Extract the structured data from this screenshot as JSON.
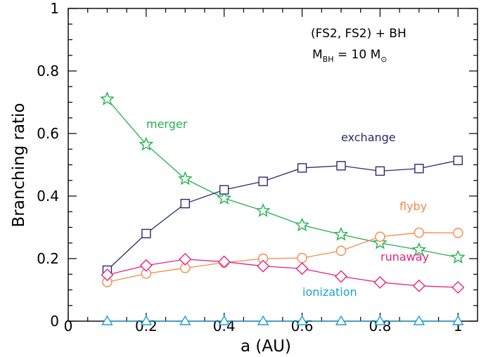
{
  "chart_data": {
    "type": "line",
    "xlabel": "a (AU)",
    "ylabel": "Branching ratio",
    "xlim": [
      0,
      1.05
    ],
    "ylim": [
      0,
      1
    ],
    "x_ticks": [
      "0",
      "0.2",
      "0.4",
      "0.6",
      "0.8",
      "1"
    ],
    "y_ticks": [
      "0",
      "0.2",
      "0.4",
      "0.6",
      "0.8",
      "1"
    ],
    "grid": false,
    "annotation": {
      "line1": "(FS2, FS2) + BH",
      "line2_main": "M",
      "line2_sub": "BH",
      "line2_eq": " = 10 M",
      "line2_sun": "⊙"
    },
    "x": [
      0.1,
      0.2,
      0.3,
      0.4,
      0.5,
      0.6,
      0.7,
      0.8,
      0.9,
      1.0
    ],
    "series": [
      {
        "name": "merger",
        "marker": "star",
        "color": "#22b14c",
        "values": [
          0.71,
          0.565,
          0.455,
          0.393,
          0.353,
          0.307,
          0.277,
          0.25,
          0.228,
          0.204
        ]
      },
      {
        "name": "exchange",
        "marker": "square",
        "color": "#2a2a6e",
        "values": [
          0.163,
          0.28,
          0.376,
          0.42,
          0.447,
          0.49,
          0.497,
          0.48,
          0.488,
          0.514
        ]
      },
      {
        "name": "flyby",
        "marker": "circle",
        "color": "#f5894a",
        "values": [
          0.125,
          0.152,
          0.17,
          0.187,
          0.2,
          0.202,
          0.225,
          0.27,
          0.283,
          0.282
        ]
      },
      {
        "name": "runaway",
        "marker": "diamond",
        "color": "#e8227d",
        "values": [
          0.148,
          0.178,
          0.198,
          0.19,
          0.176,
          0.168,
          0.143,
          0.124,
          0.113,
          0.108
        ]
      },
      {
        "name": "ionization",
        "marker": "triangle",
        "color": "#1aa0d6",
        "values": [
          0,
          0,
          0,
          0,
          0,
          0,
          0,
          0,
          0,
          0
        ]
      }
    ]
  }
}
